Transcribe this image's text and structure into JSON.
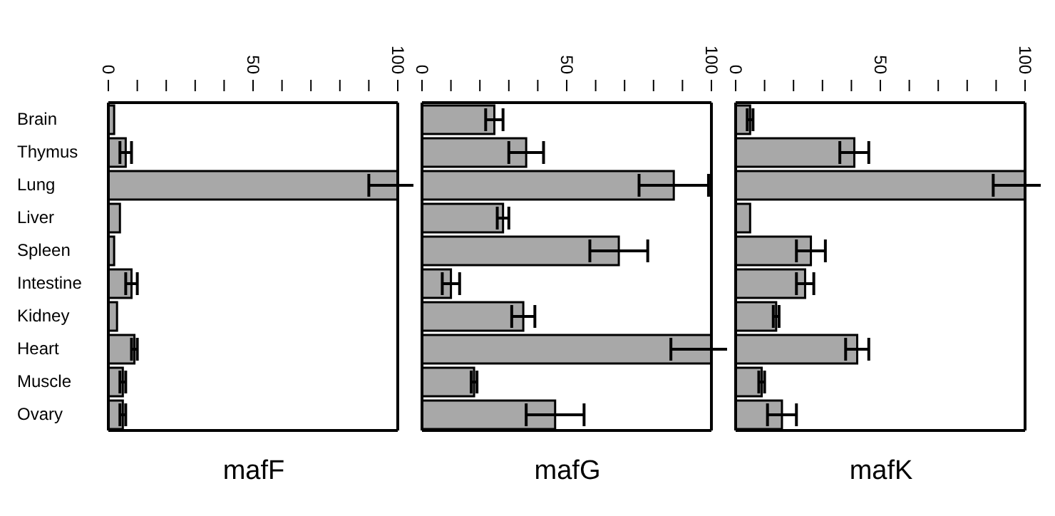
{
  "chart_data": [
    {
      "type": "bar",
      "orientation": "horizontal",
      "title": "mafF",
      "categories": [
        "Brain",
        "Thymus",
        "Lung",
        "Liver",
        "Spleen",
        "Intestine",
        "Kidney",
        "Heart",
        "Muscle",
        "Ovary"
      ],
      "color": "#a8a8a8",
      "values": [
        2,
        6,
        100,
        4,
        2,
        8,
        3,
        9,
        5,
        5
      ],
      "errors": [
        null,
        2,
        10,
        null,
        null,
        2,
        null,
        1,
        1,
        1
      ],
      "xlim": [
        0,
        100
      ],
      "xticks": [
        0,
        {
          "value": 10,
          "label": null
        },
        {
          "value": 20,
          "label": null
        },
        {
          "value": 30,
          "label": null
        },
        {
          "value": 40,
          "label": null
        },
        50,
        {
          "value": 60,
          "label": null
        },
        {
          "value": 70,
          "label": null
        },
        {
          "value": 80,
          "label": null
        },
        {
          "value": 90,
          "label": null
        },
        100
      ],
      "grid": false,
      "legend": false
    },
    {
      "type": "bar",
      "orientation": "horizontal",
      "title": "mafG",
      "color": "#a8a8a8",
      "values": [
        25,
        36,
        87,
        28,
        68,
        10,
        35,
        100,
        18,
        46
      ],
      "errors": [
        3,
        6,
        12,
        2,
        10,
        3,
        4,
        14,
        1,
        10
      ],
      "xlim": [
        0,
        100
      ],
      "xticks": [
        0,
        {
          "value": 10,
          "label": null
        },
        {
          "value": 20,
          "label": null
        },
        {
          "value": 30,
          "label": null
        },
        {
          "value": 40,
          "label": null
        },
        50,
        {
          "value": 60,
          "label": null
        },
        {
          "value": 70,
          "label": null
        },
        {
          "value": 80,
          "label": null
        },
        {
          "value": 90,
          "label": null
        },
        100
      ],
      "grid": false,
      "legend": false,
      "tick_labels": "x"
    },
    {
      "type": "bar",
      "orientation": "horizontal",
      "title": "mafK",
      "color": "#a8a8a8",
      "values": [
        5,
        41,
        100,
        5,
        26,
        24,
        14,
        42,
        9,
        16
      ],
      "errors": [
        1,
        5,
        11,
        null,
        5,
        3,
        1,
        4,
        1,
        5
      ],
      "xlim": [
        0,
        100
      ],
      "xticks": [
        0,
        {
          "value": 10,
          "label": null
        },
        {
          "value": 20,
          "label": null
        },
        {
          "value": 30,
          "label": null
        },
        {
          "value": 40,
          "label": null
        },
        50,
        {
          "value": 60,
          "label": null
        },
        {
          "value": 70,
          "label": null
        },
        {
          "value": 80,
          "label": null
        },
        {
          "value": 90,
          "label": null
        },
        100
      ],
      "grid": false,
      "legend": false,
      "tick_labels": "x"
    }
  ]
}
